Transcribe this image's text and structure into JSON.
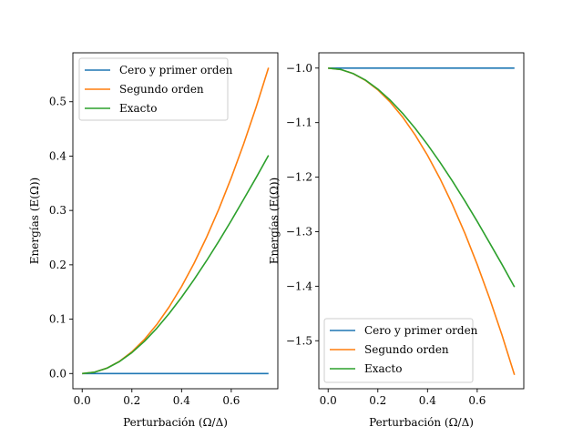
{
  "chart_data": [
    {
      "type": "line",
      "xlabel": "Perturbación (Ω/Δ)",
      "ylabel": "Energías (E(Ω))",
      "xlim": [
        -0.0375,
        0.7875
      ],
      "ylim": [
        -0.028,
        0.59
      ],
      "xticks": [
        0.0,
        0.2,
        0.4,
        0.6
      ],
      "xtick_labels": [
        "0.0",
        "0.2",
        "0.4",
        "0.6"
      ],
      "yticks": [
        0.0,
        0.1,
        0.2,
        0.3,
        0.4,
        0.5
      ],
      "ytick_labels": [
        "0.0",
        "0.1",
        "0.2",
        "0.3",
        "0.4",
        "0.5"
      ],
      "legend": "top-left",
      "grid": false,
      "x": [
        0.0,
        0.05,
        0.1,
        0.15,
        0.2,
        0.25,
        0.3,
        0.35,
        0.4,
        0.45,
        0.5,
        0.55,
        0.6,
        0.65,
        0.7,
        0.75
      ],
      "series": [
        {
          "name": "Cero y primer orden",
          "color": "#1f77b4",
          "values": [
            0,
            0,
            0,
            0,
            0,
            0,
            0,
            0,
            0,
            0,
            0,
            0,
            0,
            0,
            0,
            0
          ]
        },
        {
          "name": "Segundo orden",
          "color": "#ff7f0e",
          "values": [
            0.0,
            0.0025,
            0.01,
            0.0225,
            0.04,
            0.0625,
            0.09,
            0.1225,
            0.16,
            0.2025,
            0.25,
            0.3025,
            0.36,
            0.4225,
            0.49,
            0.5625
          ]
        },
        {
          "name": "Exacto",
          "color": "#2ca02c",
          "values": [
            0.0,
            0.0025,
            0.0099,
            0.022,
            0.0385,
            0.059,
            0.0831,
            0.1104,
            0.1403,
            0.1726,
            0.2071,
            0.2434,
            0.2812,
            0.3206,
            0.3602,
            0.4014
          ]
        }
      ]
    },
    {
      "type": "line",
      "xlabel": "Perturbación (Ω/Δ)",
      "ylabel": "Energías (E(Ω))",
      "xlim": [
        -0.0375,
        0.7875
      ],
      "ylim": [
        -1.588,
        -0.972
      ],
      "xticks": [
        0.0,
        0.2,
        0.4,
        0.6
      ],
      "xtick_labels": [
        "0.0",
        "0.2",
        "0.4",
        "0.6"
      ],
      "yticks": [
        -1.0,
        -1.1,
        -1.2,
        -1.3,
        -1.4,
        -1.5
      ],
      "ytick_labels": [
        "−1.0",
        "−1.1",
        "−1.2",
        "−1.3",
        "−1.4",
        "−1.5"
      ],
      "legend": "bottom-left",
      "grid": false,
      "x": [
        0.0,
        0.05,
        0.1,
        0.15,
        0.2,
        0.25,
        0.3,
        0.35,
        0.4,
        0.45,
        0.5,
        0.55,
        0.6,
        0.65,
        0.7,
        0.75
      ],
      "series": [
        {
          "name": "Cero y primer orden",
          "color": "#1f77b4",
          "values": [
            -1,
            -1,
            -1,
            -1,
            -1,
            -1,
            -1,
            -1,
            -1,
            -1,
            -1,
            -1,
            -1,
            -1,
            -1,
            -1
          ]
        },
        {
          "name": "Segundo orden",
          "color": "#ff7f0e",
          "values": [
            -1.0,
            -1.0025,
            -1.01,
            -1.0225,
            -1.04,
            -1.0625,
            -1.09,
            -1.1225,
            -1.16,
            -1.2025,
            -1.25,
            -1.3025,
            -1.36,
            -1.4225,
            -1.49,
            -1.5625
          ]
        },
        {
          "name": "Exacto",
          "color": "#2ca02c",
          "values": [
            -1.0,
            -1.0025,
            -1.0099,
            -1.022,
            -1.0385,
            -1.059,
            -1.0831,
            -1.1104,
            -1.1403,
            -1.1726,
            -1.2071,
            -1.2434,
            -1.2812,
            -1.3206,
            -1.3602,
            -1.4014
          ]
        }
      ]
    }
  ]
}
